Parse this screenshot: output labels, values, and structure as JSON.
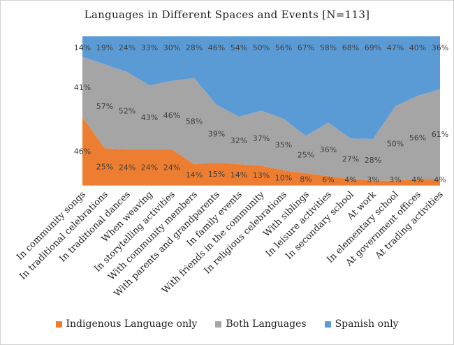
{
  "chart_data": {
    "type": "area",
    "stacked": "percent",
    "title": "Languages  in  Different  Spaces and Events  [N=113]",
    "categories": [
      "In community songs",
      "In traditional celebrations",
      "In traditional dances",
      "When weaving",
      "In storytelling activities",
      "With community members",
      "With parents and grandparents",
      "In family events",
      "With friends in the community",
      "In religious celebrations",
      "With siblings",
      "In leisure activities",
      "In secondary school",
      "At work",
      "In elementary school",
      "At government offices",
      "At trading activities"
    ],
    "series": [
      {
        "name": "Indigenous Language only",
        "color": "#ED7D31",
        "values": [
          46,
          25,
          24,
          24,
          24,
          14,
          15,
          14,
          13,
          10,
          8,
          6,
          4,
          3,
          3,
          4,
          4
        ],
        "labels": [
          "46%",
          "25%",
          "24%",
          "24%",
          "24%",
          "14%",
          "15%",
          "14%",
          "13%",
          "10%",
          "8%",
          "6%",
          "4%",
          "3%",
          "3%",
          "4%",
          "4%"
        ]
      },
      {
        "name": "Both Languages",
        "color": "#A5A5A5",
        "values": [
          41,
          57,
          52,
          43,
          46,
          58,
          39,
          32,
          37,
          35,
          25,
          36,
          27,
          28,
          50,
          56,
          61
        ],
        "labels": [
          "41%",
          "57%",
          "52%",
          "43%",
          "46%",
          "58%",
          "39%",
          "32%",
          "37%",
          "35%",
          "25%",
          "36%",
          "27%",
          "28%",
          "50%",
          "56%",
          "61%"
        ]
      },
      {
        "name": "Spanish only",
        "color": "#5B9BD5",
        "values": [
          14,
          19,
          24,
          33,
          30,
          28,
          46,
          54,
          50,
          56,
          67,
          58,
          68,
          69,
          47,
          40,
          36
        ],
        "labels": [
          "14%",
          "19%",
          "24%",
          "33%",
          "30%",
          "28%",
          "46%",
          "54%",
          "50%",
          "56%",
          "67%",
          "58%",
          "68%",
          "69%",
          "47%",
          "40%",
          "36%"
        ]
      }
    ],
    "ylim": [
      0,
      100
    ],
    "legend_position": "bottom",
    "grid": false
  }
}
